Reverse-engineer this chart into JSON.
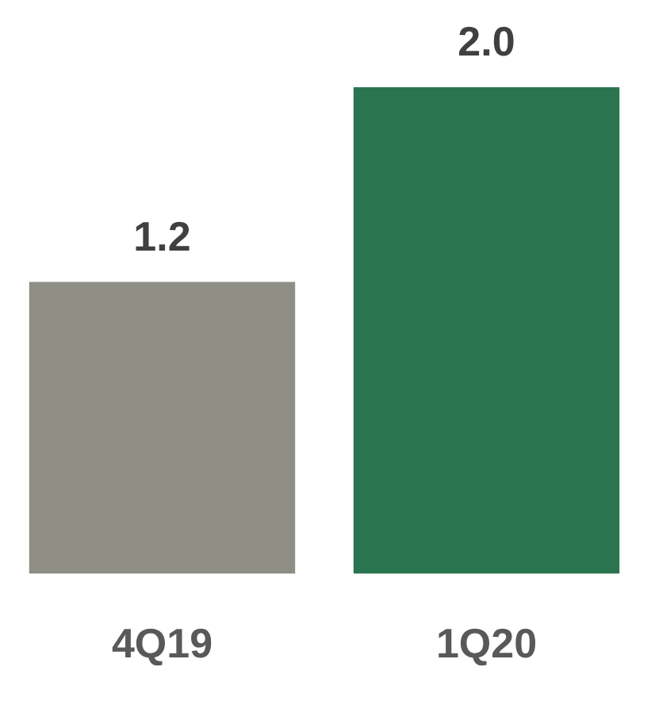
{
  "chart_data": {
    "type": "bar",
    "categories": [
      "4Q19",
      "1Q20"
    ],
    "values": [
      1.2,
      2.0
    ],
    "colors": [
      "#8f8e85",
      "#2a7550"
    ],
    "data_labels": true,
    "value_labels": [
      "1.2",
      "2.0"
    ],
    "grid": false,
    "legend": false
  }
}
